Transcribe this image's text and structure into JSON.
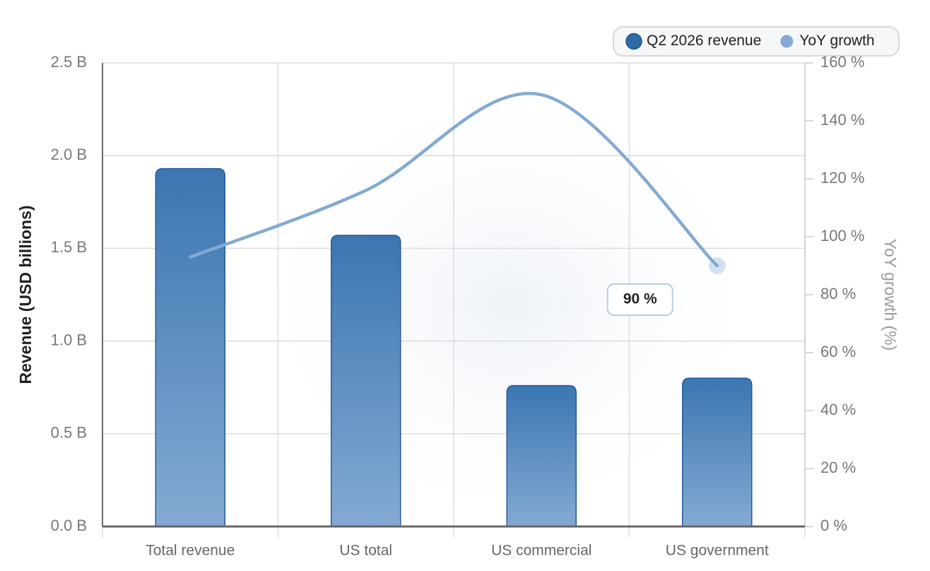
{
  "chart_data": {
    "type": "bar-line",
    "categories": [
      "Total revenue",
      "US total",
      "US commercial",
      "US government"
    ],
    "series": [
      {
        "name": "Q2 2026 revenue",
        "type": "bar",
        "color": "#2f6aa8",
        "values": [
          1.93,
          1.57,
          0.76,
          0.8
        ]
      },
      {
        "name": "YoY growth",
        "type": "line",
        "axis": "y2",
        "color": "#82aad3",
        "values": [
          93,
          116,
          149,
          90
        ],
        "value_labels": [
          null,
          null,
          null,
          "90 %"
        ]
      }
    ],
    "ylabel": "Revenue (USD billions)",
    "y2label": "YoY growth (%)",
    "ylim": [
      0,
      2.5
    ],
    "yticks": [
      {
        "value": 0,
        "label": "0.0 B"
      },
      {
        "value": 0.5,
        "label": "0.5 B"
      },
      {
        "value": 1,
        "label": "1.0 B"
      },
      {
        "value": 1.5,
        "label": "1.5 B"
      },
      {
        "value": 2,
        "label": "2.0 B"
      },
      {
        "value": 2.5,
        "label": "2.5 B"
      }
    ],
    "y2lim": [
      0,
      160
    ],
    "y2ticks": [
      {
        "value": 0,
        "label": "0 %"
      },
      {
        "value": 20,
        "label": "20 %"
      },
      {
        "value": 40,
        "label": "40 %"
      },
      {
        "value": 60,
        "label": "60 %"
      },
      {
        "value": 80,
        "label": "80 %"
      },
      {
        "value": 100,
        "label": "100 %"
      },
      {
        "value": 120,
        "label": "120 %"
      },
      {
        "value": 140,
        "label": "140 %"
      },
      {
        "value": 160,
        "label": "160 %"
      }
    ],
    "grid": true,
    "legend": "top-right"
  }
}
